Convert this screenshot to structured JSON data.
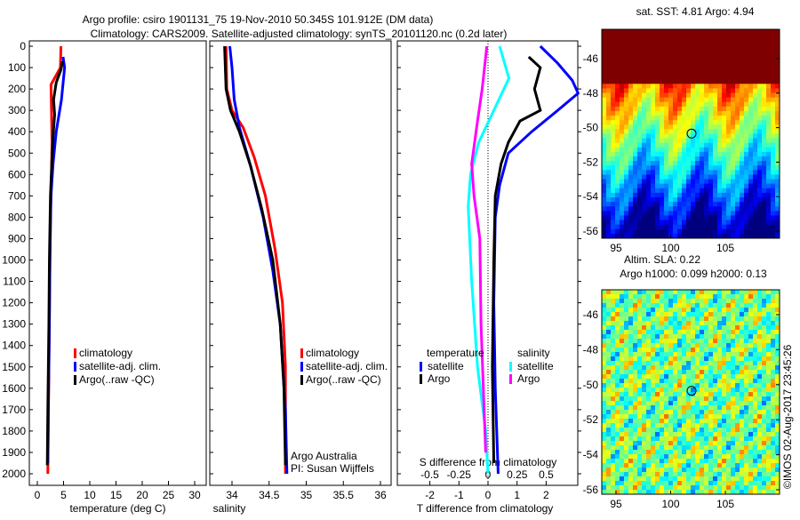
{
  "title": {
    "line1": "Argo profile: csiro 1901131_75 19-Nov-2010 50.345S 101.912E (DM data)",
    "line2": "Climatology: CARS2009. Satellite-adjusted climatology: synTS_20101120.nc (0.2d later)"
  },
  "colors": {
    "climatology": "#ff0000",
    "satellite": "#0000ff",
    "argo": "#000000",
    "s_satellite": "#00ffff",
    "s_argo": "#ff00ff"
  },
  "chart_data": [
    {
      "type": "line",
      "name": "temperature",
      "xlabel": "temperature (deg C)",
      "xlim": [
        -1.5,
        32
      ],
      "ylim": [
        2054,
        0
      ],
      "xticks": [
        0,
        5,
        10,
        15,
        20,
        25,
        30
      ],
      "yticks": [
        0,
        100,
        200,
        300,
        400,
        500,
        600,
        700,
        800,
        900,
        1000,
        1100,
        1200,
        1300,
        1400,
        1500,
        1600,
        1700,
        1800,
        1900,
        2000
      ],
      "legend": [
        "climatology",
        "satellite-adj. clim.",
        "Argo(..raw -QC)"
      ],
      "series": [
        {
          "name": "climatology",
          "color": "#ff0000",
          "points": [
            [
              4.5,
              0
            ],
            [
              4.4,
              100
            ],
            [
              2.6,
              180
            ],
            [
              2.7,
              300
            ],
            [
              2.8,
              450
            ],
            [
              2.7,
              600
            ],
            [
              2.5,
              800
            ],
            [
              2.4,
              1000
            ],
            [
              2.2,
              1500
            ],
            [
              2.0,
              2000
            ]
          ]
        },
        {
          "name": "satellite-adj. clim.",
          "color": "#0000ff",
          "points": [
            [
              4.9,
              50
            ],
            [
              5.2,
              100
            ],
            [
              4.6,
              250
            ],
            [
              3.6,
              400
            ],
            [
              3.0,
              550
            ],
            [
              2.6,
              700
            ],
            [
              2.4,
              1000
            ],
            [
              2.3,
              1300
            ],
            [
              2.1,
              1700
            ],
            [
              2.0,
              1950
            ]
          ]
        },
        {
          "name": "Argo(..raw -QC)",
          "color": "#000000",
          "points": [
            [
              4.8,
              70
            ],
            [
              4.5,
              110
            ],
            [
              3.6,
              170
            ],
            [
              3.1,
              250
            ],
            [
              3.3,
              320
            ],
            [
              3.0,
              420
            ],
            [
              2.8,
              520
            ],
            [
              2.5,
              700
            ],
            [
              2.3,
              1000
            ],
            [
              2.2,
              1300
            ],
            [
              2.0,
              1700
            ],
            [
              1.9,
              1960
            ]
          ]
        }
      ]
    },
    {
      "type": "line",
      "name": "salinity",
      "xlabel": "salinity",
      "xlim": [
        33.7,
        36.05
      ],
      "ylim": [
        2054,
        0
      ],
      "xticks": [
        34,
        34.5,
        35,
        35.5,
        36
      ],
      "legend": [
        "climatology",
        "satellite-adj. clim.",
        "Argo(..raw -QC)"
      ],
      "annotations": [
        "Argo Australia",
        "PI: Susan Wijffels"
      ],
      "series": [
        {
          "name": "climatology",
          "color": "#ff0000",
          "points": [
            [
              33.92,
              0
            ],
            [
              33.93,
              200
            ],
            [
              34.0,
              300
            ],
            [
              34.15,
              380
            ],
            [
              34.3,
              520
            ],
            [
              34.45,
              700
            ],
            [
              34.58,
              950
            ],
            [
              34.68,
              1200
            ],
            [
              34.72,
              1500
            ],
            [
              34.72,
              2000
            ]
          ]
        },
        {
          "name": "satellite-adj. clim.",
          "color": "#0000ff",
          "points": [
            [
              33.97,
              0
            ],
            [
              34.0,
              100
            ],
            [
              34.03,
              250
            ],
            [
              34.1,
              380
            ],
            [
              34.25,
              560
            ],
            [
              34.42,
              800
            ],
            [
              34.55,
              1050
            ],
            [
              34.65,
              1300
            ],
            [
              34.72,
              1700
            ],
            [
              34.74,
              2000
            ]
          ]
        },
        {
          "name": "Argo(..raw -QC)",
          "color": "#000000",
          "points": [
            [
              33.9,
              0
            ],
            [
              33.92,
              200
            ],
            [
              33.98,
              300
            ],
            [
              34.1,
              400
            ],
            [
              34.25,
              560
            ],
            [
              34.4,
              760
            ],
            [
              34.55,
              1000
            ],
            [
              34.65,
              1300
            ],
            [
              34.7,
              1600
            ],
            [
              34.72,
              1960
            ]
          ]
        }
      ]
    },
    {
      "type": "line",
      "name": "differences",
      "xlabel": "T difference from climatology",
      "x2label": "S difference from climatology",
      "xlim": [
        -3,
        3.1
      ],
      "ylim": [
        2054,
        0
      ],
      "xticks": [
        -2,
        -1,
        0,
        1,
        2
      ],
      "x2ticks": [
        -0.5,
        -0.25,
        0,
        0.25,
        0.5
      ],
      "legend": {
        "temperature_title": "temperature",
        "salinity_title": "salinity",
        "t_sat": "satellite",
        "t_argo": "Argo",
        "s_sat": "satellite",
        "s_argo": "Argo"
      },
      "series": [
        {
          "name": "T satellite",
          "color": "#0000ff",
          "units": "T",
          "points": [
            [
              1.8,
              0
            ],
            [
              2.4,
              80
            ],
            [
              2.9,
              160
            ],
            [
              3.1,
              220
            ],
            [
              2.4,
              300
            ],
            [
              1.5,
              400
            ],
            [
              0.7,
              500
            ],
            [
              0.4,
              650
            ],
            [
              0.25,
              800
            ],
            [
              0.2,
              1200
            ],
            [
              0.25,
              1600
            ],
            [
              0.35,
              2000
            ]
          ]
        },
        {
          "name": "T Argo",
          "color": "#000000",
          "units": "T",
          "points": [
            [
              1.4,
              50
            ],
            [
              1.8,
              100
            ],
            [
              1.6,
              200
            ],
            [
              1.8,
              300
            ],
            [
              1.1,
              350
            ],
            [
              0.7,
              450
            ],
            [
              0.45,
              550
            ],
            [
              0.25,
              700
            ],
            [
              0.2,
              1000
            ],
            [
              0.15,
              1500
            ],
            [
              0.2,
              1950
            ]
          ]
        },
        {
          "name": "S satellite",
          "color": "#00ffff",
          "units": "S",
          "points": [
            [
              0.1,
              0
            ],
            [
              0.18,
              150
            ],
            [
              0.05,
              300
            ],
            [
              -0.08,
              450
            ],
            [
              -0.15,
              600
            ],
            [
              -0.17,
              750
            ],
            [
              -0.14,
              1100
            ],
            [
              -0.09,
              1500
            ],
            [
              -0.02,
              1800
            ],
            [
              0.0,
              2000
            ]
          ]
        },
        {
          "name": "S Argo",
          "color": "#ff00ff",
          "units": "S",
          "points": [
            [
              -0.01,
              0
            ],
            [
              -0.05,
              200
            ],
            [
              -0.09,
              350
            ],
            [
              -0.14,
              550
            ],
            [
              -0.12,
              700
            ],
            [
              -0.07,
              900
            ],
            [
              -0.06,
              1300
            ],
            [
              -0.04,
              1600
            ],
            [
              -0.02,
              1900
            ]
          ]
        }
      ]
    },
    {
      "type": "heatmap",
      "name": "sst-map",
      "title": "sat. SST: 4.81  Argo: 4.94",
      "xticks": [
        95,
        100,
        105
      ],
      "yticks": [
        -46,
        -48,
        -50,
        -52,
        -54,
        -56
      ],
      "xlim": [
        93.7,
        110
      ],
      "ylim": [
        -56.3,
        -44.3
      ],
      "marker": [
        101.912,
        -50.345
      ]
    },
    {
      "type": "heatmap",
      "name": "sla-map",
      "title": "Altim. SLA: 0.22",
      "subtitle": "Argo h1000: 0.099 h2000: 0.13",
      "xticks": [
        95,
        100,
        105
      ],
      "yticks": [
        -46,
        -48,
        -50,
        -52,
        -54,
        -56
      ],
      "xlim": [
        93.7,
        110
      ],
      "ylim": [
        -56.3,
        -44.8
      ],
      "marker": [
        101.912,
        -50.345
      ]
    }
  ],
  "footer": {
    "credit": "©IMOS 02-Aug-2017 23:45:26"
  }
}
